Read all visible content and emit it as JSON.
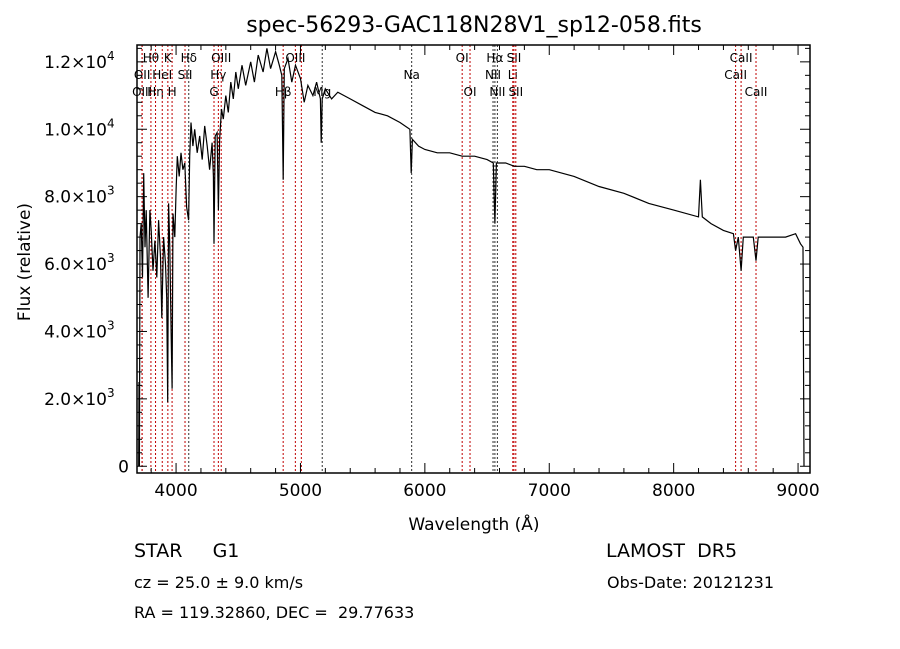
{
  "chart_data": {
    "type": "line",
    "title": "spec-56293-GAC118N28V1_sp12-058.fits",
    "xlabel": "Wavelength (Å)",
    "ylabel": "Flux (relative)",
    "xlim": [
      3686,
      9096
    ],
    "ylim": [
      -200,
      12500
    ],
    "xticks": [
      {
        "v": 4000,
        "label": "4000"
      },
      {
        "v": 5000,
        "label": "5000"
      },
      {
        "v": 6000,
        "label": "6000"
      },
      {
        "v": 7000,
        "label": "7000"
      },
      {
        "v": 8000,
        "label": "8000"
      },
      {
        "v": 9000,
        "label": "9000"
      }
    ],
    "yticks": [
      {
        "v": 0,
        "label": "0"
      },
      {
        "v": 2000,
        "label": "2.0×10",
        "exp": "3"
      },
      {
        "v": 4000,
        "label": "4.0×10",
        "exp": "3"
      },
      {
        "v": 6000,
        "label": "6.0×10",
        "exp": "3"
      },
      {
        "v": 8000,
        "label": "8.0×10",
        "exp": "3"
      },
      {
        "v": 10000,
        "label": "1.0×10",
        "exp": "4"
      },
      {
        "v": 12000,
        "label": "1.2×10",
        "exp": "4"
      }
    ],
    "grid": false,
    "series": [
      {
        "name": "flux",
        "points": [
          [
            3700,
            0
          ],
          [
            3702,
            2500
          ],
          [
            3705,
            0
          ],
          [
            3710,
            6800
          ],
          [
            3720,
            7200
          ],
          [
            3730,
            5600
          ],
          [
            3740,
            8700
          ],
          [
            3750,
            6500
          ],
          [
            3760,
            7600
          ],
          [
            3775,
            5000
          ],
          [
            3790,
            7600
          ],
          [
            3800,
            7000
          ],
          [
            3815,
            5800
          ],
          [
            3830,
            6700
          ],
          [
            3845,
            5600
          ],
          [
            3860,
            7300
          ],
          [
            3875,
            6200
          ],
          [
            3885,
            4400
          ],
          [
            3900,
            6800
          ],
          [
            3915,
            6000
          ],
          [
            3925,
            5000
          ],
          [
            3933,
            1900
          ],
          [
            3940,
            7800
          ],
          [
            3950,
            6500
          ],
          [
            3960,
            4000
          ],
          [
            3968,
            2300
          ],
          [
            3975,
            7500
          ],
          [
            3990,
            6800
          ],
          [
            4000,
            8200
          ],
          [
            4010,
            9200
          ],
          [
            4025,
            8600
          ],
          [
            4040,
            9300
          ],
          [
            4055,
            8800
          ],
          [
            4070,
            9000
          ],
          [
            4085,
            7700
          ],
          [
            4101,
            7300
          ],
          [
            4110,
            9200
          ],
          [
            4120,
            10200
          ],
          [
            4135,
            9500
          ],
          [
            4150,
            10000
          ],
          [
            4170,
            9300
          ],
          [
            4190,
            9800
          ],
          [
            4210,
            9100
          ],
          [
            4230,
            10100
          ],
          [
            4250,
            9500
          ],
          [
            4270,
            8800
          ],
          [
            4290,
            9600
          ],
          [
            4300,
            8600
          ],
          [
            4305,
            6600
          ],
          [
            4315,
            9800
          ],
          [
            4330,
            9900
          ],
          [
            4340,
            7600
          ],
          [
            4350,
            9700
          ],
          [
            4365,
            10600
          ],
          [
            4380,
            10300
          ],
          [
            4400,
            11000
          ],
          [
            4420,
            10500
          ],
          [
            4440,
            11400
          ],
          [
            4460,
            10900
          ],
          [
            4480,
            11700
          ],
          [
            4500,
            11200
          ],
          [
            4530,
            11900
          ],
          [
            4560,
            11300
          ],
          [
            4600,
            12000
          ],
          [
            4630,
            11400
          ],
          [
            4660,
            12200
          ],
          [
            4700,
            11700
          ],
          [
            4730,
            12400
          ],
          [
            4760,
            11800
          ],
          [
            4800,
            12300
          ],
          [
            4830,
            11900
          ],
          [
            4850,
            11600
          ],
          [
            4861,
            8500
          ],
          [
            4870,
            11800
          ],
          [
            4900,
            12100
          ],
          [
            4930,
            11400
          ],
          [
            4960,
            11900
          ],
          [
            5000,
            11500
          ],
          [
            5030,
            10800
          ],
          [
            5060,
            11300
          ],
          [
            5100,
            11000
          ],
          [
            5130,
            11400
          ],
          [
            5160,
            10900
          ],
          [
            5167,
            9600
          ],
          [
            5175,
            10900
          ],
          [
            5200,
            11200
          ],
          [
            5250,
            10900
          ],
          [
            5300,
            11100
          ],
          [
            5400,
            10900
          ],
          [
            5500,
            10700
          ],
          [
            5600,
            10500
          ],
          [
            5700,
            10400
          ],
          [
            5800,
            10200
          ],
          [
            5880,
            10000
          ],
          [
            5890,
            8700
          ],
          [
            5900,
            9700
          ],
          [
            5950,
            9500
          ],
          [
            6000,
            9400
          ],
          [
            6100,
            9300
          ],
          [
            6200,
            9300
          ],
          [
            6300,
            9200
          ],
          [
            6400,
            9200
          ],
          [
            6500,
            9100
          ],
          [
            6550,
            9000
          ],
          [
            6563,
            7200
          ],
          [
            6575,
            9000
          ],
          [
            6650,
            9000
          ],
          [
            6720,
            8900
          ],
          [
            6800,
            8900
          ],
          [
            6900,
            8800
          ],
          [
            7000,
            8800
          ],
          [
            7200,
            8600
          ],
          [
            7400,
            8300
          ],
          [
            7600,
            8100
          ],
          [
            7800,
            7800
          ],
          [
            8000,
            7600
          ],
          [
            8200,
            7400
          ],
          [
            8215,
            8500
          ],
          [
            8230,
            7400
          ],
          [
            8300,
            7200
          ],
          [
            8400,
            7000
          ],
          [
            8480,
            6900
          ],
          [
            8498,
            6400
          ],
          [
            8520,
            6800
          ],
          [
            8542,
            5800
          ],
          [
            8560,
            6800
          ],
          [
            8640,
            6800
          ],
          [
            8662,
            6100
          ],
          [
            8680,
            6800
          ],
          [
            8800,
            6800
          ],
          [
            8900,
            6800
          ],
          [
            8980,
            6900
          ],
          [
            9020,
            6600
          ],
          [
            9040,
            6500
          ],
          [
            9048,
            0
          ]
        ]
      }
    ],
    "lines": [
      {
        "w": 3727,
        "label": "OII",
        "row": 2,
        "color": "#c00000"
      },
      {
        "w": 3727,
        "label": "OIII",
        "row": 3,
        "color": "#c00000"
      },
      {
        "w": 3798,
        "label": "Hθ",
        "row": 1,
        "color": "#c00000"
      },
      {
        "w": 3835,
        "label": "Hη",
        "row": 3,
        "color": "#c00000"
      },
      {
        "w": 3889,
        "label": "HeI",
        "row": 2,
        "color": "#c00000"
      },
      {
        "w": 3934,
        "label": "K",
        "row": 1,
        "color": "#c00000"
      },
      {
        "w": 3968,
        "label": "H",
        "row": 3,
        "color": "#c00000"
      },
      {
        "w": 4072,
        "label": "SII",
        "row": 2,
        "color": "#c00000"
      },
      {
        "w": 4102,
        "label": "Hδ",
        "row": 1,
        "color": "#303030"
      },
      {
        "w": 4305,
        "label": "G",
        "row": 3,
        "color": "#c00000"
      },
      {
        "w": 4340,
        "label": "Hγ",
        "row": 2,
        "color": "#c00000"
      },
      {
        "w": 4363,
        "label": "OIII",
        "row": 1,
        "color": "#c00000"
      },
      {
        "w": 4861,
        "label": "Hβ",
        "row": 3,
        "color": "#c00000"
      },
      {
        "w": 4959,
        "label": "OIII",
        "row": 1,
        "color": "#c00000"
      },
      {
        "w": 5007,
        "label": "",
        "row": 1,
        "color": "#c00000"
      },
      {
        "w": 5175,
        "label": "Mg",
        "row": 3,
        "color": "#303030"
      },
      {
        "w": 5894,
        "label": "Na",
        "row": 2,
        "color": "#303030"
      },
      {
        "w": 6300,
        "label": "OI",
        "row": 1,
        "color": "#c00000"
      },
      {
        "w": 6363,
        "label": "OI",
        "row": 3,
        "color": "#c00000"
      },
      {
        "w": 6548,
        "label": "NII",
        "row": 2,
        "color": "#303030"
      },
      {
        "w": 6563,
        "label": "Hα",
        "row": 1,
        "color": "#303030"
      },
      {
        "w": 6583,
        "label": "NII",
        "row": 3,
        "color": "#303030"
      },
      {
        "w": 6707,
        "label": "Li",
        "row": 2,
        "color": "#c00000"
      },
      {
        "w": 6716,
        "label": "SII",
        "row": 1,
        "color": "#c00000"
      },
      {
        "w": 6731,
        "label": "SII",
        "row": 3,
        "color": "#c00000"
      },
      {
        "w": 8498,
        "label": "CaII",
        "row": 2,
        "color": "#c00000"
      },
      {
        "w": 8542,
        "label": "CaII",
        "row": 1,
        "color": "#c00000"
      },
      {
        "w": 8662,
        "label": "CaII",
        "row": 3,
        "color": "#c00000"
      }
    ]
  },
  "info": {
    "class": "STAR     G1",
    "survey": "LAMOST  DR5",
    "cz": "cz = 25.0 ± 9.0 km/s",
    "obs_date": "Obs-Date: 20121231",
    "coords": "RA = 119.32860, DEC =  29.77633"
  }
}
